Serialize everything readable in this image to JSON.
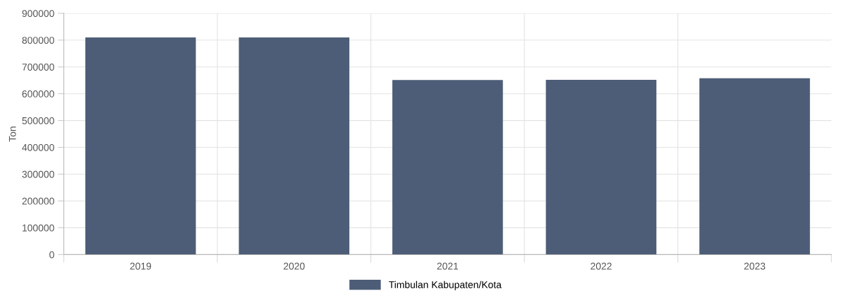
{
  "chart_data": {
    "type": "bar",
    "ylabel": "Ton",
    "categories": [
      "2019",
      "2020",
      "2021",
      "2022",
      "2023"
    ],
    "series": [
      {
        "name": "Timbulan Kabupaten/Kota",
        "color": "#4d5d77",
        "values": [
          810000,
          810000,
          651500,
          652000,
          658000
        ]
      }
    ],
    "ylim": [
      0,
      900000
    ],
    "yticks": [
      0,
      100000,
      200000,
      300000,
      400000,
      500000,
      600000,
      700000,
      800000,
      900000
    ],
    "grid": true,
    "legend": "bottom"
  }
}
